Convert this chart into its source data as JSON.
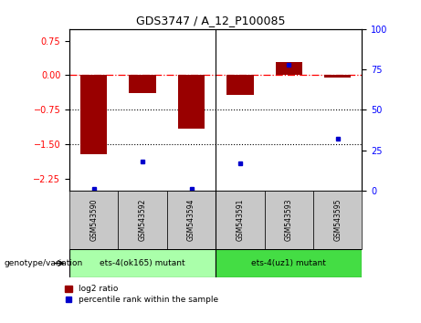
{
  "title": "GDS3747 / A_12_P100085",
  "samples": [
    "GSM543590",
    "GSM543592",
    "GSM543594",
    "GSM543591",
    "GSM543593",
    "GSM543595"
  ],
  "log2_ratios": [
    -1.72,
    -0.38,
    -1.15,
    -0.42,
    0.28,
    -0.05
  ],
  "percentile_ranks": [
    1,
    18,
    1,
    17,
    78,
    32
  ],
  "group1_label": "ets-4(ok165) mutant",
  "group2_label": "ets-4(uz1) mutant",
  "group1_color": "#aaffaa",
  "group2_color": "#44dd44",
  "sample_box_color": "#c8c8c8",
  "ylim_left": [
    -2.5,
    1.0
  ],
  "ylim_right": [
    0,
    100
  ],
  "yticks_left": [
    -2.25,
    -1.5,
    -0.75,
    0,
    0.75
  ],
  "yticks_right": [
    0,
    25,
    50,
    75,
    100
  ],
  "bar_color": "#990000",
  "dot_color": "#0000cc",
  "dotted_lines": [
    -0.75,
    -1.5
  ],
  "bar_width": 0.55,
  "legend_bar_label": "log2 ratio",
  "legend_dot_label": "percentile rank within the sample",
  "genotype_label": "genotype/variation"
}
